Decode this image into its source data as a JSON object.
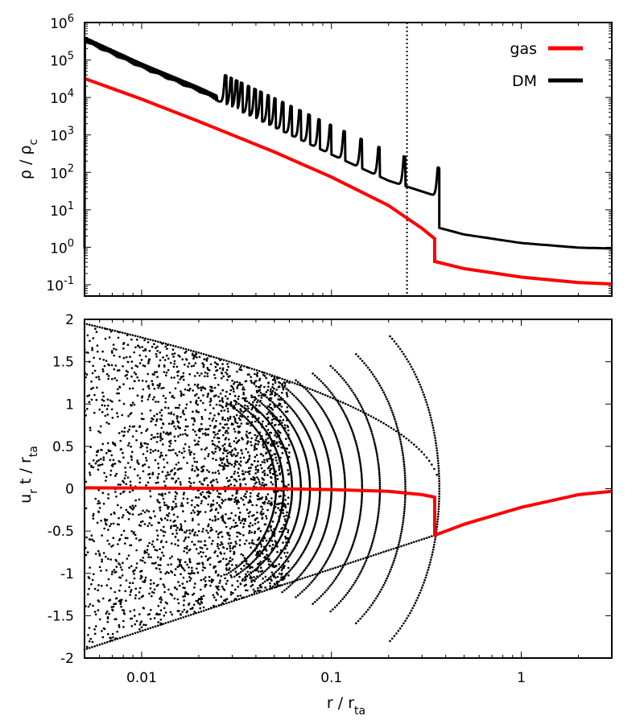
{
  "chart_data": [
    {
      "type": "line",
      "panel": "top",
      "title": "",
      "xlabel": "",
      "ylabel": "ρ / ρc",
      "ylabel_parts": {
        "base": "ρ / ρ",
        "sub": "c"
      },
      "xscale": "log",
      "yscale": "log",
      "xlim": [
        0.005,
        3
      ],
      "ylim": [
        0.05,
        1000000
      ],
      "ytick_values": [
        0.1,
        1,
        10,
        100,
        1000,
        10000,
        100000,
        1000000
      ],
      "ytick_labels": [
        {
          "base": "10",
          "exp": "-1"
        },
        {
          "base": "10",
          "exp": "0"
        },
        {
          "base": "10",
          "exp": "1"
        },
        {
          "base": "10",
          "exp": "2"
        },
        {
          "base": "10",
          "exp": "3"
        },
        {
          "base": "10",
          "exp": "4"
        },
        {
          "base": "10",
          "exp": "5"
        },
        {
          "base": "10",
          "exp": "6"
        }
      ],
      "vertical_marker": {
        "x": 0.25,
        "style": "dotted"
      },
      "legend": {
        "position": "top-right",
        "entries": [
          {
            "label": "gas",
            "color": "#ff0000"
          },
          {
            "label": "DM",
            "color": "#000000"
          }
        ]
      },
      "series": [
        {
          "name": "gas",
          "color": "#ff0000",
          "x": [
            0.005,
            0.01,
            0.02,
            0.05,
            0.1,
            0.2,
            0.3,
            0.35,
            0.35,
            0.5,
            1,
            2,
            3
          ],
          "y": [
            32000,
            9000,
            2300,
            350,
            75,
            13,
            3.2,
            1.7,
            0.42,
            0.27,
            0.16,
            0.115,
            0.105
          ]
        },
        {
          "name": "DM",
          "color": "#000000",
          "x": [
            0.005,
            0.01,
            0.02,
            0.05,
            0.1,
            0.2,
            0.37,
            0.37,
            0.5,
            1,
            2,
            3
          ],
          "y": [
            300000,
            60000,
            14000,
            1600,
            300,
            60,
            22,
            3.3,
            2.2,
            1.3,
            0.98,
            0.93
          ]
        }
      ]
    },
    {
      "type": "scatter",
      "panel": "bottom",
      "title": "",
      "xlabel": "r / rta",
      "xlabel_parts": {
        "base": "r / r",
        "sub": "ta"
      },
      "ylabel": "ur t / rta",
      "ylabel_parts": {
        "b1": "u",
        "s1": "r",
        "b2": " t / r",
        "s2": "ta"
      },
      "xscale": "log",
      "yscale": "linear",
      "xlim": [
        0.005,
        3
      ],
      "ylim": [
        -2,
        2
      ],
      "xtick_values": [
        0.01,
        0.1,
        1
      ],
      "xtick_labels": [
        "0.01",
        "0.1",
        "1"
      ],
      "ytick_values": [
        2,
        1.5,
        1,
        0.5,
        0,
        -0.5,
        -1,
        -1.5,
        -2
      ],
      "ytick_labels": [
        "2",
        "1.5",
        "1",
        "0.5",
        "0",
        "-0.5",
        "-1",
        "-1.5",
        "-2"
      ],
      "series": [
        {
          "name": "DM",
          "kind": "scatter",
          "color": "#000000",
          "description_points": {
            "outer_caustic_r": 0.37,
            "upper_envelope": [
              [
                0.005,
                1.95
              ],
              [
                0.1,
                1.1
              ],
              [
                0.3,
                0.35
              ],
              [
                0.37,
                0
              ]
            ],
            "lower_envelope": [
              [
                0.005,
                -1.9
              ],
              [
                0.1,
                -1.0
              ],
              [
                0.35,
                -0.55
              ]
            ]
          }
        },
        {
          "name": "gas",
          "kind": "line",
          "color": "#ff0000",
          "x": [
            0.005,
            0.05,
            0.1,
            0.2,
            0.3,
            0.35,
            0.35,
            0.5,
            1,
            2,
            3
          ],
          "y": [
            0.01,
            0.0,
            -0.01,
            -0.03,
            -0.07,
            -0.1,
            -0.55,
            -0.42,
            -0.22,
            -0.07,
            -0.03
          ]
        }
      ]
    }
  ]
}
